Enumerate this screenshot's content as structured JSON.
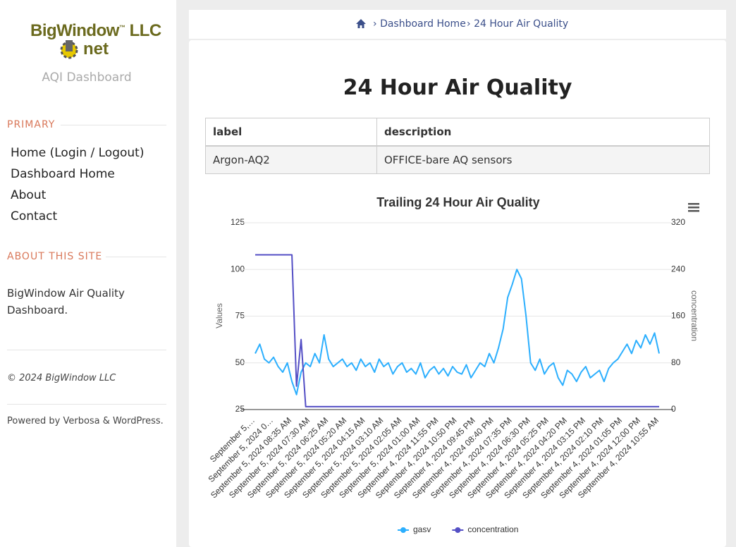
{
  "sidebar": {
    "logo": {
      "name": "BigWindow",
      "tm": "™",
      "suffix": "LLC",
      "net": "net"
    },
    "tagline": "AQI Dashboard",
    "primary_heading": "PRIMARY",
    "menu": [
      "Home (Login / Logout)",
      "Dashboard Home",
      "About",
      "Contact"
    ],
    "about_heading": "ABOUT THIS SITE",
    "about_text": "BigWindow Air Quality Dashboard.",
    "copyright": "© 2024 BigWindow LLC",
    "powered": "Powered by Verbosa & WordPress."
  },
  "breadcrumb": [
    "Dashboard Home",
    "24 Hour Air Quality"
  ],
  "page_title": "24 Hour Air Quality",
  "table": {
    "headers": [
      "label",
      "description"
    ],
    "rows": [
      [
        "Argon-AQ2",
        "OFFICE-bare AQ sensors"
      ]
    ]
  },
  "chart_data": {
    "type": "line",
    "title": "Trailing 24 Hour Air Quality",
    "y_label": "Values",
    "y2_label": "concentration",
    "categories": [
      "September 5,…",
      null,
      null,
      null,
      "September 5, 2024 0…",
      null,
      null,
      null,
      "September 5, 2024 08:35 AM",
      null,
      null,
      null,
      "September 5, 2024 07:30 AM",
      null,
      null,
      null,
      "September 5, 2024 06:25 AM",
      null,
      null,
      null,
      "September 5, 2024 05:20 AM",
      null,
      null,
      null,
      "September 5, 2024 04:15 AM",
      null,
      null,
      null,
      "September 5, 2024 03:10 AM",
      null,
      null,
      null,
      "September 5, 2024 02:05 AM",
      null,
      null,
      null,
      "September 5, 2024 01:00 AM",
      null,
      null,
      null,
      "September 4, 2024 11:55 PM",
      null,
      null,
      null,
      "September 4, 2024 10:50 PM",
      null,
      null,
      null,
      "September 4, 2024 09:45 PM",
      null,
      null,
      null,
      "September 4, 2024 08:40 PM",
      null,
      null,
      null,
      "September 4, 2024 07:35 PM",
      null,
      null,
      null,
      "September 4, 2024 06:30 PM",
      null,
      null,
      null,
      "September 4, 2024 05:25 PM",
      null,
      null,
      null,
      "September 4, 2024 04:20 PM",
      null,
      null,
      null,
      "September 4, 2024 03:15 PM",
      null,
      null,
      null,
      "September 4, 2024 02:10 PM",
      null,
      null,
      null,
      "September 4, 2024 01:05 PM",
      null,
      null,
      null,
      "September 4, 2024 12:00 PM",
      null,
      null,
      null,
      "September 4, 2024 10:55 AM"
    ],
    "series": [
      {
        "name": "gasv",
        "color": "#2caffe",
        "values": [
          55,
          60,
          52,
          50,
          53,
          48,
          45,
          50,
          40,
          33,
          45,
          50,
          48,
          55,
          50,
          65,
          52,
          48,
          50,
          52,
          48,
          50,
          46,
          52,
          48,
          50,
          45,
          52,
          48,
          50,
          44,
          48,
          50,
          45,
          47,
          44,
          50,
          42,
          46,
          48,
          44,
          47,
          43,
          48,
          45,
          44,
          49,
          42,
          46,
          50,
          48,
          55,
          50,
          58,
          68,
          85,
          92,
          100,
          95,
          75,
          50,
          46,
          52,
          44,
          48,
          50,
          42,
          38,
          46,
          44,
          40,
          45,
          48,
          42,
          44,
          46,
          40,
          47,
          50,
          52,
          56,
          60,
          55,
          62,
          58,
          65,
          60,
          66,
          55
        ]
      },
      {
        "name": "concentration",
        "color": "#544fc5",
        "axis": "y2",
        "values": [
          265,
          265,
          265,
          265,
          265,
          265,
          265,
          265,
          265,
          40,
          120,
          5,
          5,
          5,
          5,
          5,
          5,
          5,
          5,
          5,
          5,
          5,
          5,
          5,
          5,
          5,
          5,
          5,
          5,
          5,
          5,
          5,
          5,
          5,
          5,
          5,
          5,
          5,
          5,
          5,
          5,
          5,
          5,
          5,
          5,
          5,
          5,
          5,
          5,
          5,
          5,
          5,
          5,
          5,
          5,
          5,
          5,
          5,
          5,
          5,
          5,
          5,
          5,
          5,
          5,
          5,
          5,
          5,
          5,
          5,
          5,
          5,
          5,
          5,
          5,
          5,
          5,
          5,
          5,
          5,
          5,
          5,
          5,
          5,
          5,
          5,
          5,
          5,
          5
        ]
      }
    ],
    "ylim": [
      25,
      125
    ],
    "yticks": [
      25,
      50,
      75,
      100,
      125
    ],
    "y2lim": [
      0,
      320
    ],
    "y2ticks": [
      0,
      80,
      160,
      240,
      320
    ],
    "grid": true,
    "legend": "bottom"
  }
}
